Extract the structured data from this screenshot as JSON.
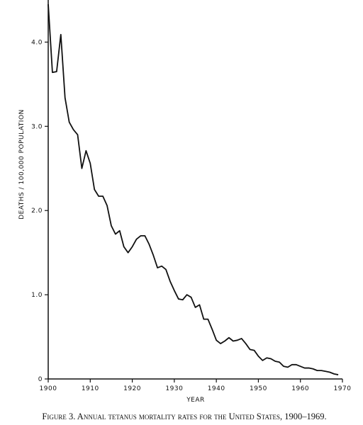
{
  "chart_data": {
    "type": "line",
    "caption": "Figure 3. Annual tetanus mortality rates for the United States, 1900–1969.",
    "xlabel": "YEAR",
    "ylabel": "DEATHS / 100,000 POPULATION",
    "x": [
      1900,
      1901,
      1902,
      1903,
      1904,
      1905,
      1906,
      1907,
      1908,
      1909,
      1910,
      1911,
      1912,
      1913,
      1914,
      1915,
      1916,
      1917,
      1918,
      1919,
      1920,
      1921,
      1922,
      1923,
      1924,
      1925,
      1926,
      1927,
      1928,
      1929,
      1930,
      1931,
      1932,
      1933,
      1934,
      1935,
      1936,
      1937,
      1938,
      1939,
      1940,
      1941,
      1942,
      1943,
      1944,
      1945,
      1946,
      1947,
      1948,
      1949,
      1950,
      1951,
      1952,
      1953,
      1954,
      1955,
      1956,
      1957,
      1958,
      1959,
      1960,
      1961,
      1962,
      1963,
      1964,
      1965,
      1966,
      1967,
      1968,
      1969
    ],
    "values": [
      4.45,
      3.64,
      3.65,
      4.09,
      3.34,
      3.05,
      2.96,
      2.9,
      2.5,
      2.71,
      2.56,
      2.25,
      2.17,
      2.17,
      2.06,
      1.82,
      1.72,
      1.76,
      1.57,
      1.5,
      1.57,
      1.66,
      1.7,
      1.7,
      1.6,
      1.47,
      1.32,
      1.34,
      1.3,
      1.16,
      1.05,
      0.95,
      0.94,
      1.0,
      0.97,
      0.85,
      0.88,
      0.71,
      0.71,
      0.59,
      0.46,
      0.42,
      0.45,
      0.49,
      0.45,
      0.46,
      0.48,
      0.42,
      0.35,
      0.34,
      0.27,
      0.22,
      0.25,
      0.24,
      0.21,
      0.2,
      0.15,
      0.14,
      0.17,
      0.17,
      0.15,
      0.13,
      0.13,
      0.12,
      0.1,
      0.1,
      0.09,
      0.08,
      0.06,
      0.05
    ],
    "color": "#111111",
    "xlim": [
      1900,
      1970
    ],
    "xticks": [
      1900,
      1910,
      1920,
      1930,
      1940,
      1950,
      1960,
      1970
    ],
    "ylim": [
      0,
      4.5
    ],
    "yticks": [
      0,
      {
        "value": 1,
        "label": "1.0"
      },
      {
        "value": 2,
        "label": "2.0"
      },
      {
        "value": 3,
        "label": "3.0"
      },
      {
        "value": 4,
        "label": "4.0"
      }
    ]
  }
}
